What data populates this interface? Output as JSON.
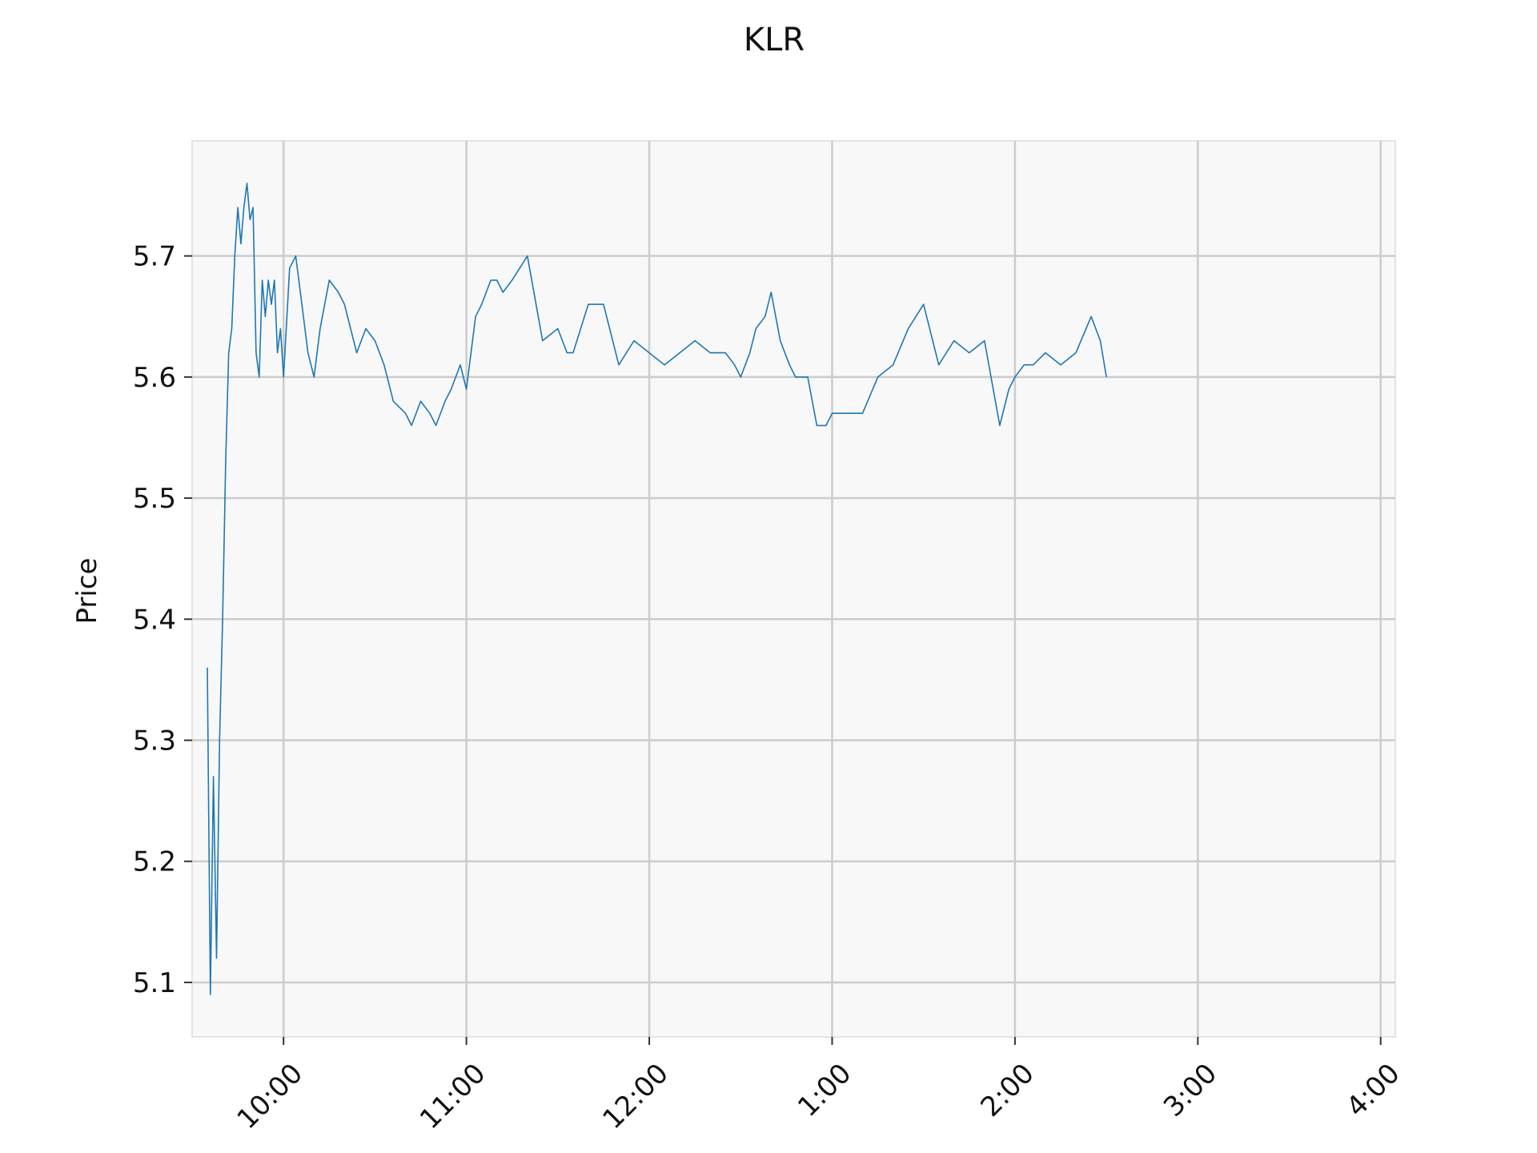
{
  "chart_data": {
    "type": "line",
    "title": "KLR",
    "ylabel": "Price",
    "xlabel": "",
    "ylim": [
      5.055,
      5.795
    ],
    "xlim_hours": [
      9.5,
      16.08
    ],
    "x_ticks": [
      {
        "hour": 10,
        "label": "10:00"
      },
      {
        "hour": 11,
        "label": "11:00"
      },
      {
        "hour": 12,
        "label": "12:00"
      },
      {
        "hour": 13,
        "label": "1:00"
      },
      {
        "hour": 14,
        "label": "2:00"
      },
      {
        "hour": 15,
        "label": "3:00"
      },
      {
        "hour": 16,
        "label": "4:00"
      }
    ],
    "y_ticks": [
      5.1,
      5.2,
      5.3,
      5.4,
      5.5,
      5.6,
      5.7
    ],
    "grid": true,
    "line_color": "#1f77b4",
    "plot_background": "#f8f8f8",
    "grid_color": "#cccccc",
    "series": [
      {
        "x": [
          "09:35",
          "09:36",
          "09:37",
          "09:38",
          "09:39",
          "09:40",
          "09:41",
          "09:42",
          "09:43",
          "09:44",
          "09:45",
          "09:46",
          "09:47",
          "09:48",
          "09:49",
          "09:50",
          "09:51",
          "09:52",
          "09:53",
          "09:54",
          "09:55",
          "09:56",
          "09:57",
          "09:58",
          "09:59",
          "10:00",
          "10:02",
          "10:04",
          "10:06",
          "10:08",
          "10:10",
          "10:12",
          "10:15",
          "10:18",
          "10:20",
          "10:24",
          "10:27",
          "10:30",
          "10:33",
          "10:36",
          "10:40",
          "10:42",
          "10:45",
          "10:48",
          "10:50",
          "10:53",
          "10:55",
          "10:58",
          "11:00",
          "11:03",
          "11:05",
          "11:08",
          "11:10",
          "11:12",
          "11:15",
          "11:20",
          "11:25",
          "11:30",
          "11:33",
          "11:35",
          "11:40",
          "11:45",
          "11:50",
          "11:55",
          "12:00",
          "12:05",
          "12:10",
          "12:15",
          "12:20",
          "12:25",
          "12:28",
          "12:30",
          "12:33",
          "12:35",
          "12:38",
          "12:40",
          "12:43",
          "12:46",
          "12:48",
          "12:52",
          "12:55",
          "12:58",
          "13:00",
          "13:05",
          "13:10",
          "13:15",
          "13:20",
          "13:25",
          "13:30",
          "13:35",
          "13:40",
          "13:45",
          "13:50",
          "13:55",
          "13:58",
          "14:00",
          "14:03",
          "14:06",
          "14:10",
          "14:15",
          "14:20",
          "14:25",
          "14:28",
          "14:30"
        ],
        "values": [
          5.36,
          5.09,
          5.27,
          5.12,
          5.3,
          5.4,
          5.53,
          5.62,
          5.64,
          5.7,
          5.74,
          5.71,
          5.74,
          5.76,
          5.73,
          5.74,
          5.62,
          5.6,
          5.68,
          5.65,
          5.68,
          5.66,
          5.68,
          5.62,
          5.64,
          5.6,
          5.69,
          5.7,
          5.66,
          5.62,
          5.6,
          5.64,
          5.68,
          5.67,
          5.66,
          5.62,
          5.64,
          5.63,
          5.61,
          5.58,
          5.57,
          5.56,
          5.58,
          5.57,
          5.56,
          5.58,
          5.59,
          5.61,
          5.59,
          5.65,
          5.66,
          5.68,
          5.68,
          5.67,
          5.68,
          5.7,
          5.63,
          5.64,
          5.62,
          5.62,
          5.66,
          5.66,
          5.61,
          5.63,
          5.62,
          5.61,
          5.62,
          5.63,
          5.62,
          5.62,
          5.61,
          5.6,
          5.62,
          5.64,
          5.65,
          5.67,
          5.63,
          5.61,
          5.6,
          5.6,
          5.56,
          5.56,
          5.57,
          5.57,
          5.57,
          5.6,
          5.61,
          5.64,
          5.66,
          5.61,
          5.63,
          5.62,
          5.63,
          5.56,
          5.59,
          5.6,
          5.61,
          5.61,
          5.62,
          5.61,
          5.62,
          5.65,
          5.63,
          5.6
        ]
      }
    ]
  }
}
